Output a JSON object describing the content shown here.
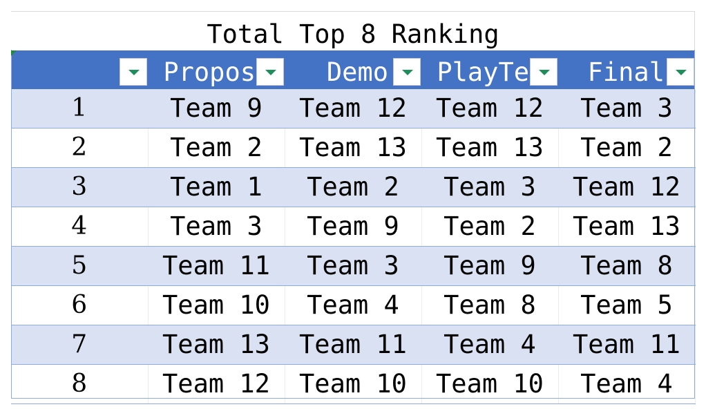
{
  "sheet": {
    "title": "Total Top 8 Ranking"
  },
  "table": {
    "headers": [
      "",
      "Propos",
      "Demo",
      "PlayTe",
      "Final"
    ],
    "filter_icon": "dropdown-arrow-icon",
    "header_color": "#4472c4",
    "band_color": "#d9e1f2",
    "filter_arrow_color": "#1d8f5a",
    "rows": [
      {
        "rank": "1",
        "cells": [
          "Team 9",
          "Team 12",
          "Team 12",
          "Team 3"
        ]
      },
      {
        "rank": "2",
        "cells": [
          "Team 2",
          "Team 13",
          "Team 13",
          "Team 2"
        ]
      },
      {
        "rank": "3",
        "cells": [
          "Team 1",
          "Team 2",
          "Team 3",
          "Team 12"
        ]
      },
      {
        "rank": "4",
        "cells": [
          "Team 3",
          "Team 9",
          "Team 2",
          "Team 13"
        ]
      },
      {
        "rank": "5",
        "cells": [
          "Team 11",
          "Team 3",
          "Team 9",
          "Team 8"
        ]
      },
      {
        "rank": "6",
        "cells": [
          "Team 10",
          "Team 4",
          "Team 8",
          "Team 5"
        ]
      },
      {
        "rank": "7",
        "cells": [
          "Team 13",
          "Team 11",
          "Team 4",
          "Team 11"
        ]
      },
      {
        "rank": "8",
        "cells": [
          "Team 12",
          "Team 10",
          "Team 10",
          "Team 4"
        ]
      }
    ]
  }
}
